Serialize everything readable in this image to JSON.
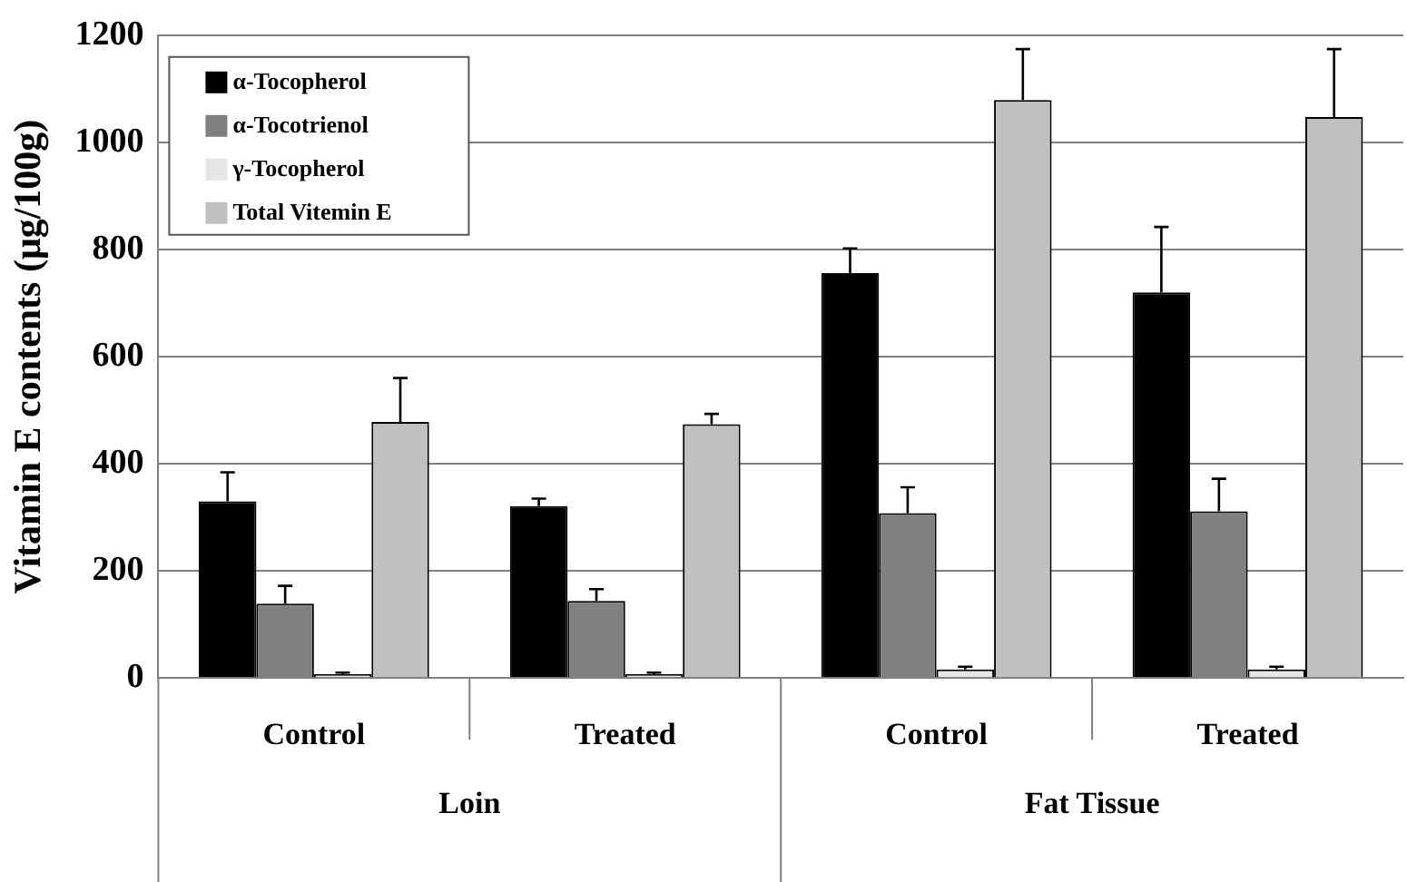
{
  "chart_data": {
    "type": "bar",
    "ylabel": "Vitamin E contents (μg/100g)",
    "categories": [
      "Control",
      "Treated",
      "Control",
      "Treated"
    ],
    "annotations": [
      "Loin",
      "Fat Tissue"
    ],
    "series": [
      {
        "name": "α-Tocopherol",
        "color": "#000000",
        "values": [
          330,
          321,
          756,
          720
        ],
        "errors": [
          [
            330,
            384
          ],
          [
            321,
            335
          ],
          [
            756,
            802
          ],
          [
            720,
            842
          ]
        ]
      },
      {
        "name": "α-Tocotrienol",
        "color": "#808080",
        "values": [
          139,
          144,
          308,
          311
        ],
        "errors": [
          [
            139,
            172
          ],
          [
            144,
            166
          ],
          [
            308,
            356
          ],
          [
            311,
            372
          ]
        ]
      },
      {
        "name": "γ-Tocopherol",
        "color": "#e6e6e6",
        "values": [
          7,
          7,
          16,
          16
        ],
        "errors": [
          [
            7,
            10
          ],
          [
            7,
            10
          ],
          [
            16,
            21
          ],
          [
            16,
            21
          ]
        ]
      },
      {
        "name": "Total Vitemin E",
        "color": "#c0c0c0",
        "values": [
          478,
          474,
          1079,
          1047
        ],
        "errors": [
          [
            478,
            560
          ],
          [
            474,
            493
          ],
          [
            1079,
            1174
          ],
          [
            1047,
            1174
          ]
        ]
      }
    ],
    "ylim": [
      0,
      1200
    ],
    "yticks": [
      0,
      200,
      400,
      600,
      800,
      1000,
      1200
    ],
    "grid": "y",
    "legend": "top left"
  }
}
